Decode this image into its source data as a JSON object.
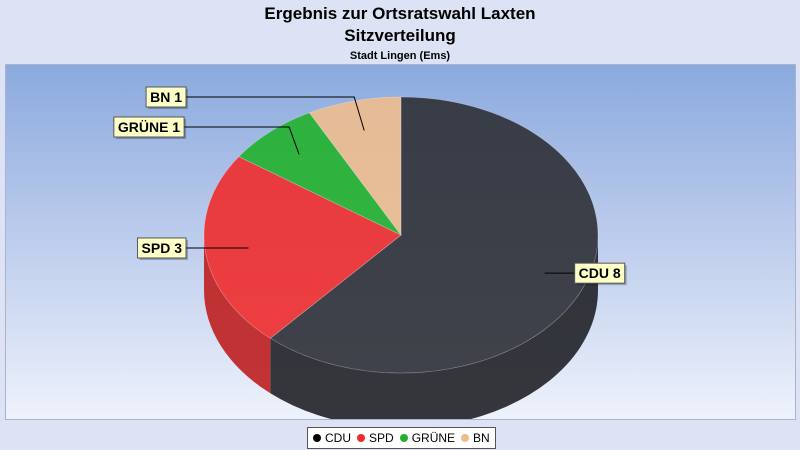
{
  "chart_data": {
    "type": "pie",
    "title": "Ergebnis zur Ortsratswahl Laxten",
    "subtitle": "Sitzverteilung",
    "caption": "Stadt Lingen (Ems)",
    "slices": [
      {
        "name": "CDU",
        "value": 8,
        "label": "CDU 8",
        "color": "#2e3036"
      },
      {
        "name": "SPD",
        "value": 3,
        "label": "SPD 3",
        "color": "#ee2c2c"
      },
      {
        "name": "GRÜNE",
        "value": 1,
        "label": "GRÜNE 1",
        "color": "#22b02c"
      },
      {
        "name": "BN",
        "value": 1,
        "label": "BN 1",
        "color": "#edbd8e"
      }
    ],
    "legend_position": "bottom"
  }
}
